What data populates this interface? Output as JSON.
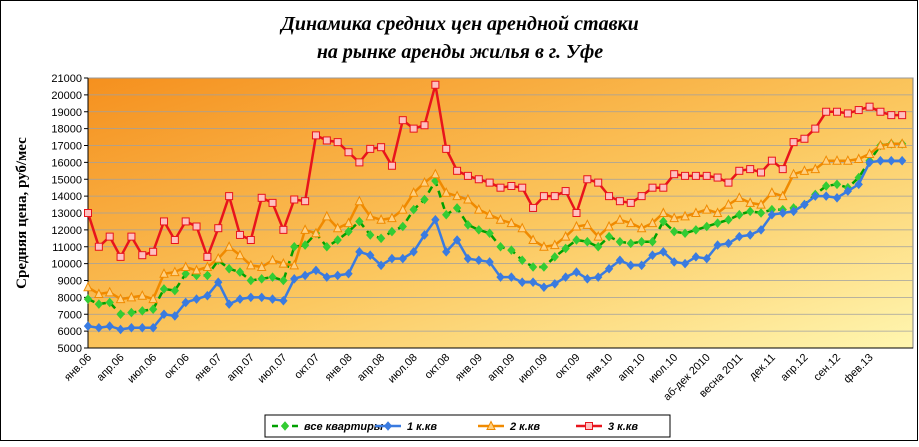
{
  "chart_data": {
    "type": "line",
    "title": [
      "Динамика средних цен арендной ставки",
      "на рынке аренды жилья в г. Уфе"
    ],
    "y_label": "Средняя цена, руб/мес",
    "categories": [
      "янв.06",
      null,
      null,
      "апр.06",
      null,
      null,
      "июл.06",
      null,
      null,
      "окт.06",
      null,
      null,
      "янв.07",
      null,
      null,
      "апр.07",
      null,
      null,
      "июл.07",
      null,
      null,
      "окт.07",
      null,
      null,
      "янв.08",
      null,
      null,
      "апр.08",
      null,
      null,
      "июл.08",
      null,
      null,
      "окт.08",
      null,
      null,
      "янв.09",
      null,
      null,
      "апр.09",
      null,
      null,
      "июл.09",
      null,
      null,
      "окт.09",
      null,
      null,
      "янв.10",
      null,
      null,
      "апр.10",
      null,
      null,
      "июл.10",
      null,
      null,
      "аб-дек 2010",
      null,
      null,
      "весна 2011",
      null,
      null,
      "дек.11",
      null,
      null,
      "апр.12",
      null,
      null,
      "сен.12",
      null,
      null,
      "фев.13",
      null,
      null,
      null
    ],
    "ylim": [
      5000,
      21000
    ],
    "yticks": [
      5000,
      6000,
      7000,
      8000,
      9000,
      10000,
      11000,
      12000,
      13000,
      14000,
      15000,
      16000,
      17000,
      18000,
      19000,
      20000,
      21000
    ],
    "grid": true,
    "series": [
      {
        "name": "все квартиры",
        "color": "#00a000",
        "dashed": true,
        "marker": "diamond",
        "marker_color": "#33cc33",
        "values": [
          7900,
          7600,
          7700,
          7000,
          7100,
          7200,
          7300,
          8500,
          8400,
          9400,
          9300,
          9300,
          10200,
          9700,
          9500,
          9000,
          9100,
          9200,
          9000,
          11000,
          11100,
          11800,
          11000,
          11400,
          11900,
          12500,
          11700,
          11500,
          11900,
          12200,
          13200,
          13800,
          14900,
          12900,
          13300,
          12300,
          12000,
          11800,
          11000,
          10800,
          10200,
          9800,
          9800,
          10400,
          10900,
          11400,
          11300,
          11000,
          11600,
          11300,
          11200,
          11300,
          11300,
          12500,
          11900,
          11800,
          12000,
          12200,
          12400,
          12600,
          12900,
          13100,
          13000,
          13200,
          13200,
          13300,
          13500,
          14100,
          14600,
          14700,
          14500,
          15100,
          16100,
          17000,
          17100,
          17100
        ]
      },
      {
        "name": "1 к.кв",
        "color": "#3a7be0",
        "dashed": false,
        "marker": "diamond",
        "marker_color": "#3a7be0",
        "values": [
          6300,
          6200,
          6300,
          6100,
          6200,
          6200,
          6200,
          7000,
          6900,
          7700,
          7900,
          8100,
          8900,
          7600,
          7900,
          8000,
          8000,
          7900,
          7800,
          9100,
          9300,
          9600,
          9200,
          9300,
          9400,
          10700,
          10500,
          9900,
          10300,
          10300,
          10700,
          11700,
          12600,
          10700,
          11400,
          10300,
          10200,
          10100,
          9200,
          9200,
          8900,
          8900,
          8600,
          8800,
          9200,
          9500,
          9100,
          9200,
          9700,
          10200,
          9900,
          9900,
          10500,
          10700,
          10100,
          10000,
          10400,
          10300,
          11100,
          11200,
          11600,
          11700,
          12000,
          12900,
          13000,
          13100,
          13500,
          14000,
          14000,
          13900,
          14300,
          14700,
          16000,
          16100,
          16100,
          16100
        ]
      },
      {
        "name": "2 к.кв",
        "color": "#f08a00",
        "dashed": false,
        "marker": "triangle",
        "marker_color": "#ffd080",
        "values": [
          8600,
          8200,
          8300,
          7900,
          8000,
          8100,
          7900,
          9400,
          9500,
          9800,
          9600,
          9800,
          10300,
          11000,
          10500,
          9900,
          9800,
          10200,
          10000,
          9900,
          12000,
          11800,
          12800,
          12100,
          12400,
          13700,
          12800,
          12600,
          12700,
          13200,
          14200,
          14800,
          15300,
          14200,
          14000,
          13800,
          13200,
          12900,
          12600,
          12400,
          12100,
          11400,
          11000,
          11100,
          11600,
          12200,
          12300,
          11600,
          12200,
          12600,
          12400,
          12100,
          12400,
          13000,
          12700,
          12800,
          13000,
          13200,
          13000,
          13500,
          13900,
          13600,
          13500,
          14200,
          14000,
          15300,
          15500,
          15600,
          16100,
          16100,
          16100,
          16200,
          16500,
          17000,
          17100,
          17100
        ]
      },
      {
        "name": "3 к.кв",
        "color": "#e8141c",
        "dashed": false,
        "marker": "square",
        "marker_color": "#ffc0c0",
        "values": [
          13000,
          11000,
          11600,
          10400,
          11600,
          10500,
          10700,
          12500,
          11400,
          12500,
          12200,
          10400,
          12100,
          14000,
          11700,
          11400,
          13900,
          13600,
          12000,
          13800,
          13700,
          17600,
          17300,
          17200,
          16600,
          16000,
          16800,
          16900,
          15800,
          18500,
          18000,
          18200,
          20600,
          16800,
          15500,
          15200,
          15000,
          14800,
          14500,
          14600,
          14500,
          13300,
          14000,
          14000,
          14300,
          13000,
          15000,
          14800,
          14000,
          13700,
          13600,
          14000,
          14500,
          14500,
          15300,
          15200,
          15200,
          15200,
          15100,
          14800,
          15500,
          15600,
          15400,
          16100,
          15600,
          17200,
          17400,
          18000,
          19000,
          19000,
          18900,
          19100,
          19300,
          19000,
          18800,
          18800
        ]
      }
    ]
  }
}
